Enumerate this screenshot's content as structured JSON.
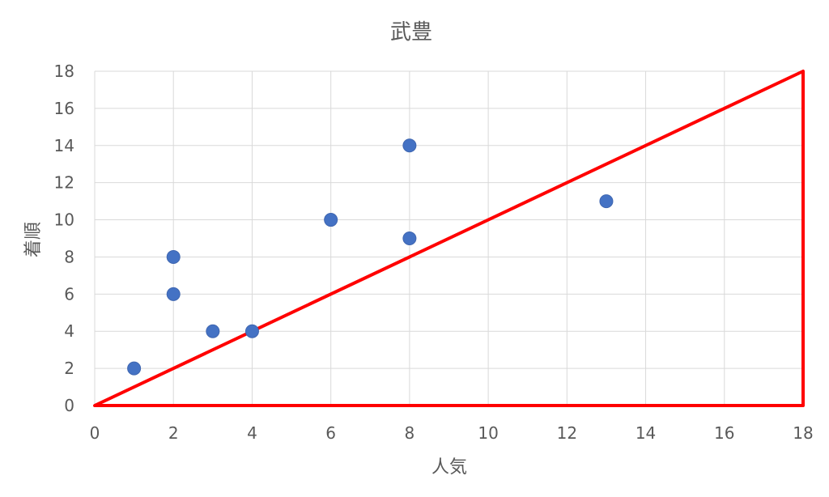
{
  "chart_data": {
    "type": "scatter",
    "title": "武豊",
    "xlabel": "人気",
    "ylabel": "着順",
    "xlim": [
      0,
      18
    ],
    "ylim": [
      0,
      18
    ],
    "xticks": [
      0,
      2,
      4,
      6,
      8,
      10,
      12,
      14,
      16,
      18
    ],
    "yticks": [
      0,
      2,
      4,
      6,
      8,
      10,
      12,
      14,
      16,
      18
    ],
    "grid": true,
    "marker_color": "#4472c4",
    "series": [
      {
        "points": [
          {
            "x": 1,
            "y": 2
          },
          {
            "x": 2,
            "y": 8
          },
          {
            "x": 2,
            "y": 6
          },
          {
            "x": 3,
            "y": 4
          },
          {
            "x": 4,
            "y": 4
          },
          {
            "x": 6,
            "y": 10
          },
          {
            "x": 8,
            "y": 14
          },
          {
            "x": 8,
            "y": 9
          },
          {
            "x": 13,
            "y": 11
          }
        ]
      }
    ],
    "annotations": [
      {
        "type": "triangle",
        "color": "#ff0000",
        "vertices": [
          {
            "x": 0,
            "y": 0
          },
          {
            "x": 18,
            "y": 18
          },
          {
            "x": 18,
            "y": 0
          }
        ]
      }
    ]
  }
}
